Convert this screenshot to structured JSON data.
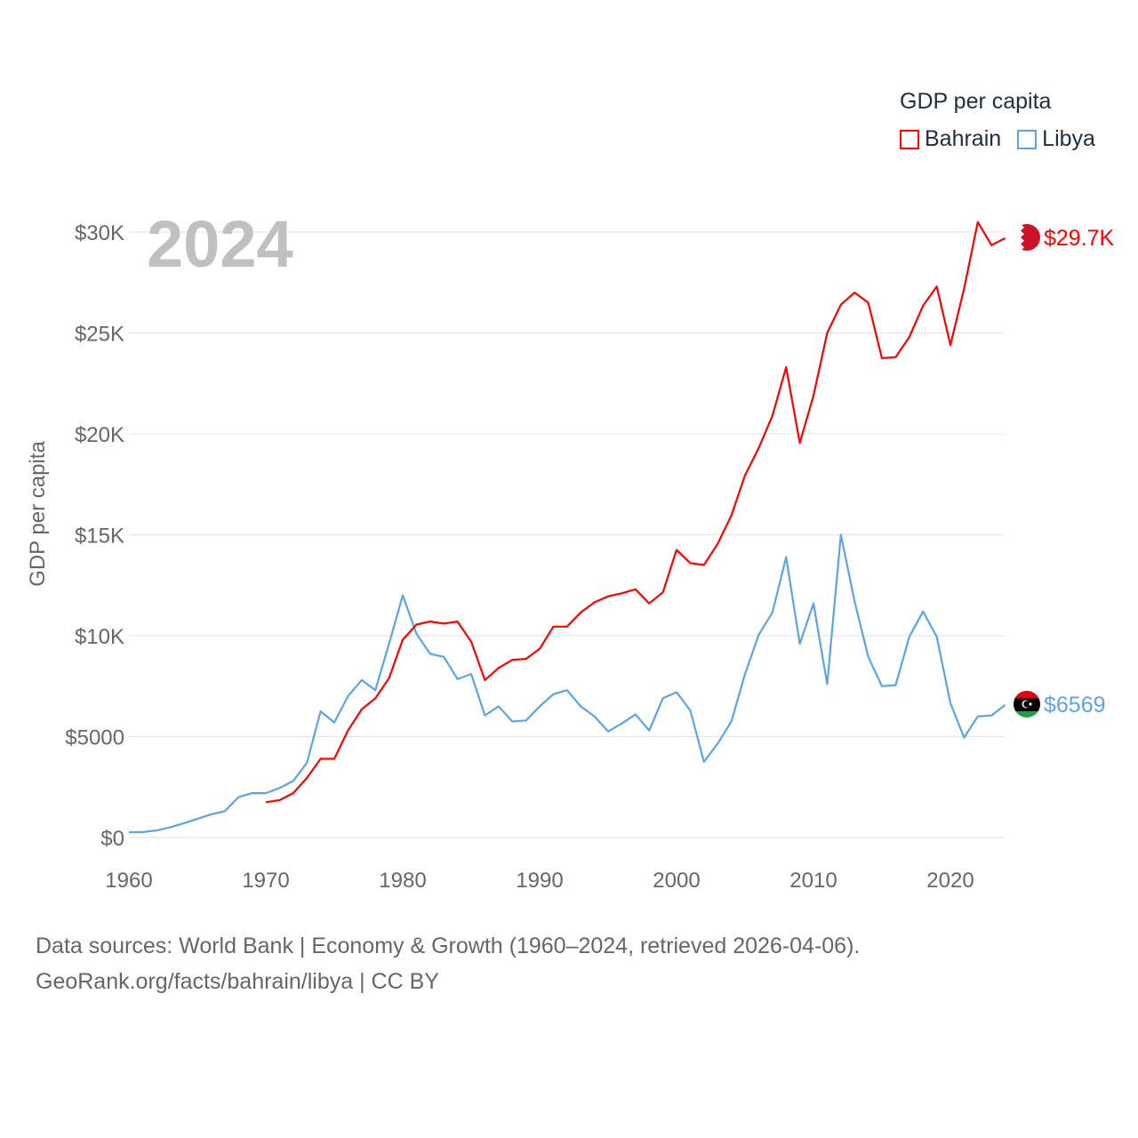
{
  "legend": {
    "title": "GDP per capita",
    "items": [
      {
        "label": "Bahrain",
        "color": "#ff0000"
      },
      {
        "label": "Libya",
        "color": "#5ba4e5"
      }
    ]
  },
  "year_label": "2024",
  "footer": {
    "line1": "Data sources: World Bank | Economy & Growth (1960–2024, retrieved 2026-04-06).",
    "line2": "GeoRank.org/facts/bahrain/libya | CC BY"
  },
  "chart_data": {
    "type": "line",
    "title": "GDP per capita",
    "xlabel": "",
    "ylabel": "GDP per capita",
    "xlim": [
      1960,
      2024
    ],
    "ylim": [
      0,
      30000
    ],
    "x_ticks": [
      1960,
      1970,
      1980,
      1990,
      2000,
      2010,
      2020
    ],
    "x_tick_labels": [
      "1960",
      "1970",
      "1980",
      "1990",
      "2000",
      "2010",
      "2020"
    ],
    "y_ticks": [
      0,
      5000,
      10000,
      15000,
      20000,
      25000,
      30000
    ],
    "y_tick_labels": [
      "$0",
      "$5000",
      "$10K",
      "$15K",
      "$20K",
      "$25K",
      "$30K"
    ],
    "grid": true,
    "legend_position": "top-right",
    "series": [
      {
        "name": "Bahrain",
        "color": "#ff0000",
        "end_label": "$29.7K",
        "start_year": 1970,
        "values": [
          1750,
          1850,
          2200,
          2950,
          3900,
          3900,
          5300,
          6350,
          6900,
          7900,
          9800,
          10550,
          10700,
          10600,
          10700,
          9700,
          7800,
          8400,
          8800,
          8850,
          9350,
          10450,
          10450,
          11150,
          11650,
          11950,
          12100,
          12300,
          11600,
          12150,
          14250,
          13600,
          13500,
          14550,
          15950,
          17950,
          19300,
          20900,
          23300,
          19550,
          21900,
          25000,
          26400,
          27000,
          26500,
          23750,
          23800,
          24800,
          26350,
          27300,
          24400,
          27200,
          30500,
          29350,
          29700
        ]
      },
      {
        "name": "Libya",
        "color": "#5ba4e5",
        "end_label": "$6569",
        "start_year": 1960,
        "values": [
          260,
          270,
          350,
          500,
          700,
          920,
          1150,
          1300,
          2000,
          2200,
          2200,
          2450,
          2800,
          3700,
          6250,
          5700,
          7000,
          7800,
          7300,
          9600,
          12000,
          10100,
          9100,
          8950,
          7850,
          8100,
          6050,
          6500,
          5750,
          5800,
          6500,
          7100,
          7300,
          6500,
          6000,
          5250,
          5650,
          6100,
          5300,
          6900,
          7200,
          6300,
          3750,
          4650,
          5750,
          8100,
          10050,
          11150,
          13900,
          9600,
          11600,
          7600,
          15000,
          11700,
          8950,
          7500,
          7550,
          9950,
          11200,
          9950,
          6650,
          4950,
          6000,
          6050,
          6569
        ]
      }
    ]
  }
}
